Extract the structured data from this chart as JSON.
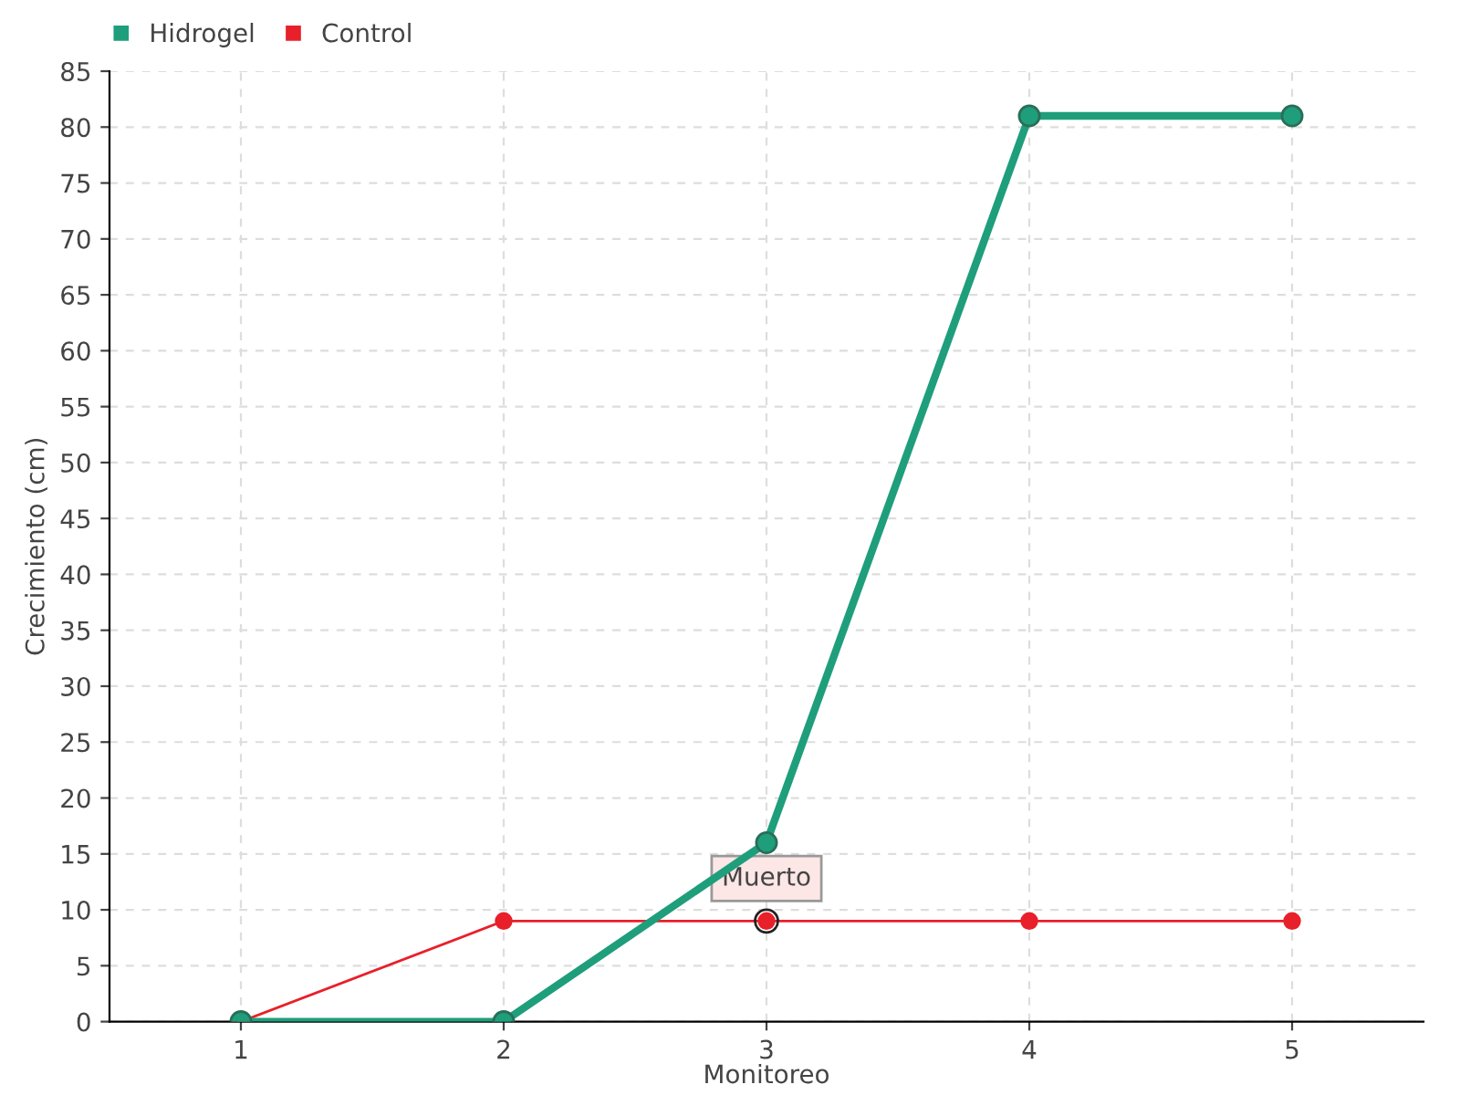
{
  "chart_data": {
    "type": "line",
    "xlabel": "Monitoreo",
    "ylabel": "Crecimiento (cm)",
    "categories": [
      "1",
      "2",
      "3",
      "4",
      "5"
    ],
    "series": [
      {
        "name": "Hidrogel",
        "color": "#1f9e7c",
        "values": [
          0,
          0,
          16,
          81,
          81
        ]
      },
      {
        "name": "Control",
        "color": "#e8202a",
        "values": [
          0,
          9,
          9,
          9,
          9
        ]
      }
    ],
    "ylim": [
      0,
      85
    ],
    "yticks": [
      0,
      5,
      10,
      15,
      20,
      25,
      30,
      35,
      40,
      45,
      50,
      55,
      60,
      65,
      70,
      75,
      80,
      85
    ],
    "annotations": [
      {
        "text": "Muerto",
        "x": "3",
        "y": 9
      }
    ],
    "grid": true,
    "legend": "top left",
    "marker": "circle",
    "line_style": "solid"
  }
}
